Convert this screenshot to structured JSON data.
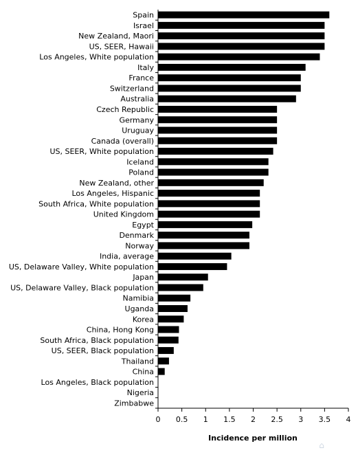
{
  "chart_data": {
    "type": "bar",
    "orientation": "horizontal",
    "categories": [
      "Spain",
      "Israel",
      "New Zealand, Maori",
      "US, SEER, Hawaii",
      "Los Angeles, White population",
      "Italy",
      "France",
      "Switzerland",
      "Australia",
      "Czech Republic",
      "Germany",
      "Uruguay",
      "Canada (overall)",
      "US, SEER, White population",
      "Iceland",
      "Poland",
      "New Zealand, other",
      "Los Angeles, Hispanic",
      "South Africa, White population",
      "United Kingdom",
      "Egypt",
      "Denmark",
      "Norway",
      "India, average",
      "US, Delaware Valley, White population",
      "Japan",
      "US, Delaware Valley, Black population",
      "Namibia",
      "Uganda",
      "Korea",
      "China, Hong Kong",
      "South Africa, Black population",
      "US, SEER, Black population",
      "Thailand",
      "China",
      "Los Angeles, Black population",
      "Nigeria",
      "Zimbabwe"
    ],
    "values": [
      3.6,
      3.5,
      3.5,
      3.5,
      3.4,
      3.1,
      3.0,
      3.0,
      2.9,
      2.5,
      2.5,
      2.5,
      2.5,
      2.42,
      2.32,
      2.32,
      2.22,
      2.14,
      2.14,
      2.14,
      1.98,
      1.92,
      1.92,
      1.54,
      1.45,
      1.05,
      0.95,
      0.68,
      0.62,
      0.54,
      0.44,
      0.43,
      0.33,
      0.23,
      0.14,
      0.0,
      0.0,
      0.0
    ],
    "xlabel": "Incidence per million",
    "xlim": [
      0,
      4
    ],
    "xticks": [
      0,
      0.5,
      1,
      1.5,
      2,
      2.5,
      3,
      3.5,
      4
    ],
    "xtick_labels": [
      "0",
      "0.5",
      "1",
      "1.5",
      "2",
      "2.5",
      "3",
      "3.5",
      "4"
    ],
    "bar_color": "#000000",
    "grid": false,
    "legend": "none"
  }
}
